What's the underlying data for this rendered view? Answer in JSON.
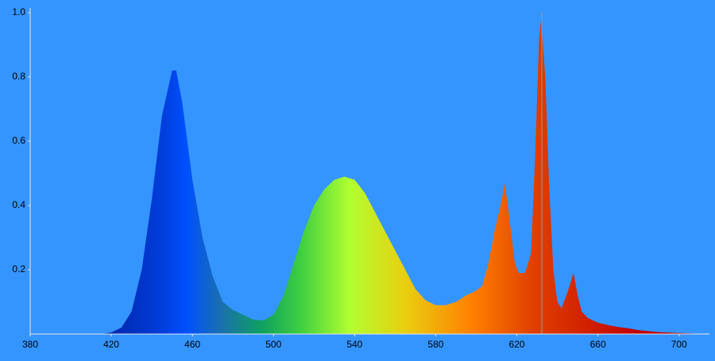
{
  "chart_data": {
    "type": "area",
    "x": [
      415,
      420,
      425,
      430,
      435,
      440,
      445,
      450,
      452,
      455,
      460,
      465,
      470,
      475,
      480,
      485,
      490,
      495,
      500,
      505,
      510,
      515,
      520,
      525,
      530,
      535,
      540,
      545,
      550,
      555,
      560,
      565,
      570,
      575,
      580,
      585,
      590,
      595,
      600,
      603,
      606,
      609,
      612,
      614,
      616,
      619,
      621,
      624,
      627,
      629,
      631,
      632,
      634,
      636,
      638,
      640,
      642,
      645,
      648,
      650,
      652,
      655,
      660,
      665,
      670,
      675,
      680,
      690,
      700,
      710
    ],
    "values": [
      0,
      0.005,
      0.02,
      0.07,
      0.2,
      0.42,
      0.68,
      0.82,
      0.82,
      0.72,
      0.48,
      0.3,
      0.18,
      0.1,
      0.075,
      0.06,
      0.045,
      0.042,
      0.06,
      0.12,
      0.22,
      0.32,
      0.4,
      0.45,
      0.48,
      0.49,
      0.48,
      0.44,
      0.38,
      0.32,
      0.26,
      0.2,
      0.14,
      0.105,
      0.09,
      0.09,
      0.1,
      0.12,
      0.135,
      0.15,
      0.22,
      0.32,
      0.4,
      0.47,
      0.38,
      0.22,
      0.19,
      0.19,
      0.25,
      0.55,
      0.92,
      0.98,
      0.8,
      0.45,
      0.2,
      0.1,
      0.08,
      0.13,
      0.19,
      0.12,
      0.07,
      0.05,
      0.035,
      0.028,
      0.022,
      0.018,
      0.012,
      0.006,
      0.003,
      0.001
    ],
    "xlim": [
      380,
      715
    ],
    "xticks": [
      380,
      420,
      460,
      500,
      540,
      580,
      620,
      660,
      700
    ],
    "ylim": [
      0,
      1
    ],
    "yticks": [
      0.2,
      0.4,
      0.6,
      0.8,
      {
        "value": 1,
        "label": "1.0"
      }
    ]
  }
}
